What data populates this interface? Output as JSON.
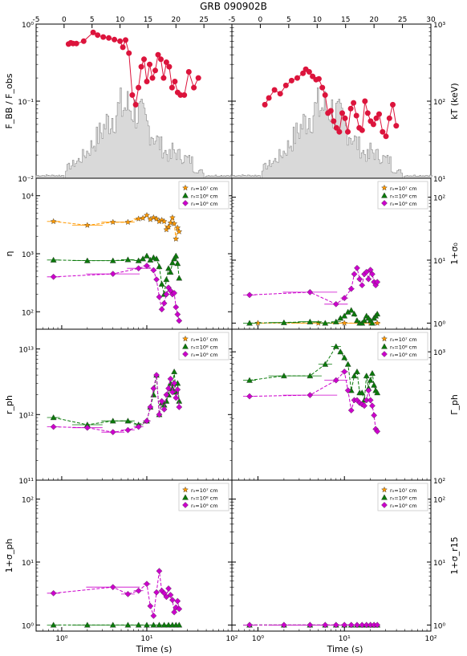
{
  "title": "GRB 090902B",
  "xlabel": "Time (s)",
  "colors": {
    "red": "#dc143c",
    "hist_fill": "#d9d9d9",
    "hist_line": "#8c8c8c",
    "orange": "#ff9900",
    "green": "#0a7a0a",
    "magenta": "#cc00cc"
  },
  "legend": [
    "r₀=10⁷ cm",
    "r₀=10⁸ cm",
    "r₀=10⁹ cm"
  ],
  "top_axis_ticks_left": [
    "-5",
    "0",
    "5",
    "10",
    "15",
    "20",
    "25"
  ],
  "top_axis_ticks_right": [
    "-5",
    "0",
    "5",
    "10",
    "15",
    "20",
    "25",
    "30"
  ],
  "bottom_axis_ticks": [
    "10⁰",
    "10¹",
    "10²"
  ],
  "panels": [
    {
      "id": "fbb",
      "ylabel": "F_BB / F_obs",
      "yticks": [
        "10⁻²",
        "10⁻¹",
        "10⁰"
      ]
    },
    {
      "id": "kt",
      "ylabel": "kT (keV)",
      "yticks": [
        "10¹",
        "10²",
        "10³"
      ]
    },
    {
      "id": "eta",
      "ylabel": "η",
      "yticks": [
        "10²",
        "10³",
        "10⁴"
      ]
    },
    {
      "id": "sigma0",
      "ylabel": "1+σ₀",
      "yticks": [
        "10⁰",
        "10¹",
        "10²"
      ]
    },
    {
      "id": "rph",
      "ylabel": "r_ph",
      "yticks": [
        "10¹¹",
        "10¹²",
        "10¹³"
      ]
    },
    {
      "id": "gph",
      "ylabel": "Γ_ph",
      "yticks": [
        "10²",
        "10³"
      ]
    },
    {
      "id": "sigph",
      "ylabel": "1+σ_ph",
      "yticks": [
        "10⁰",
        "10¹",
        "10²"
      ]
    },
    {
      "id": "sig15",
      "ylabel": "1+σ_r15",
      "yticks": [
        "10⁰",
        "10¹",
        "10²"
      ]
    }
  ],
  "chart_data": {
    "type": "scatter",
    "title": "GRB 090902B",
    "xlabel": "Time (s)",
    "x_scale": "log",
    "xlim": [
      0.5,
      100
    ],
    "top_axis_range": [
      -5,
      30
    ],
    "panels": [
      {
        "ylabel": "F_BB/F_obs",
        "yscale": "log",
        "ylim": [
          0.01,
          1
        ],
        "series": [
          {
            "x": [
              0.8,
              1.2,
              1.6,
              2.2,
              3.5,
              5.2,
              6.0,
              7.0,
              8.0,
              9.0,
              10.0,
              10.5,
              11.0,
              11.6,
              12.2,
              12.8,
              13.3,
              13.8,
              14.3,
              14.8,
              15.3,
              15.8,
              16.3,
              16.8,
              17.3,
              17.8,
              18.3,
              18.8,
              19.3,
              19.8,
              20.3,
              20.8,
              21.5,
              22.3,
              23.2,
              24.0
            ],
            "y": [
              0.55,
              0.57,
              0.56,
              0.56,
              0.6,
              0.78,
              0.72,
              0.68,
              0.66,
              0.63,
              0.6,
              0.5,
              0.62,
              0.42,
              0.12,
              0.09,
              0.15,
              0.28,
              0.35,
              0.18,
              0.3,
              0.2,
              0.25,
              0.4,
              0.35,
              0.2,
              0.32,
              0.28,
              0.15,
              0.18,
              0.13,
              0.12,
              0.12,
              0.24,
              0.15,
              0.2
            ]
          }
        ]
      },
      {
        "ylabel": "kT (keV)",
        "yscale": "log",
        "ylim": [
          10,
          1000
        ],
        "series": [
          {
            "x": [
              0.8,
              1.5,
              2.5,
              3.5,
              4.5,
              5.5,
              6.5,
              7.5,
              8.0,
              8.6,
              9.2,
              9.8,
              10.3,
              10.9,
              11.4,
              11.9,
              12.4,
              12.9,
              13.4,
              13.9,
              14.4,
              14.9,
              15.4,
              15.9,
              16.4,
              16.9,
              17.4,
              17.9,
              18.4,
              18.9,
              19.4,
              19.9,
              20.4,
              20.9,
              21.5,
              22.1,
              22.7,
              23.3,
              23.9
            ],
            "y": [
              90,
              110,
              140,
              125,
              160,
              185,
              200,
              230,
              260,
              240,
              210,
              190,
              195,
              150,
              120,
              70,
              75,
              55,
              45,
              40,
              70,
              60,
              40,
              80,
              95,
              65,
              45,
              42,
              100,
              70,
              55,
              50,
              60,
              68,
              40,
              35,
              60,
              90,
              48
            ]
          }
        ]
      },
      {
        "ylabel": "η",
        "yscale": "log",
        "ylim": [
          50,
          20000
        ],
        "series": [
          {
            "name": "r0=1e7 cm",
            "x": [
              0.8,
              2.0,
              4.0,
              6.0,
              8.0,
              9.0,
              10.0,
              11.0,
              12.0,
              13.0,
              14.0,
              15.0,
              16.0,
              17.0,
              18.0,
              19.0,
              20.0,
              21.0,
              22.0,
              23.0,
              24.0
            ],
            "y": [
              3600,
              3100,
              3500,
              3500,
              4000,
              4100,
              4600,
              3900,
              4200,
              4000,
              3600,
              3800,
              3600,
              2600,
              2900,
              3400,
              4200,
              3300,
              1800,
              2800,
              2400
            ]
          },
          {
            "name": "r0=1e8 cm",
            "x": [
              0.8,
              2.0,
              4.0,
              6.0,
              8.0,
              9.0,
              10.0,
              11.0,
              12.0,
              13.0,
              14.0,
              15.0,
              16.0,
              17.0,
              18.0,
              19.0,
              20.0,
              21.0,
              22.0,
              23.0,
              24.0
            ],
            "y": [
              780,
              760,
              760,
              790,
              760,
              820,
              920,
              780,
              860,
              820,
              600,
              300,
              200,
              360,
              560,
              480,
              700,
              820,
              920,
              680,
              380
            ]
          },
          {
            "name": "r0=1e9 cm",
            "x": [
              0.8,
              4.0,
              8.0,
              10.0,
              12.0,
              13.0,
              14.0,
              15.0,
              16.0,
              17.0,
              18.0,
              19.0,
              20.0,
              21.0,
              22.0,
              23.0,
              24.0
            ],
            "y": [
              400,
              450,
              560,
              620,
              520,
              360,
              180,
              110,
              140,
              200,
              260,
              230,
              200,
              210,
              120,
              90,
              70
            ]
          }
        ]
      },
      {
        "ylabel": "1+σ₀",
        "yscale": "log",
        "ylim": [
          0.8,
          200
        ],
        "series": [
          {
            "name": "r0=1e7 cm",
            "x": [
              1,
              5,
              10,
              15,
              20,
              24
            ],
            "y": [
              1.0,
              1.0,
              1.0,
              1.0,
              1.0,
              1.0
            ]
          },
          {
            "name": "r0=1e8 cm",
            "x": [
              0.8,
              2.0,
              4.0,
              6.0,
              8.0,
              9.0,
              10.0,
              11.0,
              12.0,
              13.0,
              14.0,
              15.0,
              16.0,
              17.0,
              18.0,
              19.0,
              20.0,
              21.0,
              22.0,
              23.0,
              24.0
            ],
            "y": [
              1.0,
              1.02,
              1.05,
              1.0,
              1.05,
              1.2,
              1.3,
              1.5,
              1.6,
              1.4,
              1.1,
              1.0,
              1.0,
              1.1,
              1.3,
              1.2,
              1.1,
              1.0,
              1.2,
              1.3,
              1.4
            ]
          },
          {
            "name": "r0=1e9 cm",
            "x": [
              0.8,
              4.0,
              8.0,
              10.0,
              12.0,
              13.0,
              14.0,
              15.0,
              16.0,
              17.0,
              18.0,
              19.0,
              20.0,
              21.0,
              22.0,
              23.0,
              24.0
            ],
            "y": [
              2.8,
              3.1,
              2.0,
              2.5,
              3.5,
              6.0,
              7.5,
              5.0,
              4.0,
              6.0,
              6.5,
              5.0,
              7.0,
              6.0,
              4.5,
              4.0,
              4.5
            ]
          }
        ]
      },
      {
        "ylabel": "r_ph",
        "yscale": "log",
        "ylim": [
          100000000000.0,
          20000000000000.0
        ],
        "series": [
          {
            "name": "r0=1e8 cm",
            "x": [
              0.8,
              2.0,
              4.0,
              6.0,
              8.0,
              10.0,
              11.0,
              12.0,
              13.0,
              14.0,
              15.0,
              16.0,
              17.0,
              18.0,
              19.0,
              20.0,
              21.0,
              22.0,
              23.0,
              24.0
            ],
            "y": [
              900000000000.0,
              700000000000.0,
              800000000000.0,
              800000000000.0,
              700000000000.0,
              800000000000.0,
              1300000000000.0,
              2000000000000.0,
              4000000000000.0,
              1000000000000.0,
              1500000000000.0,
              1400000000000.0,
              1600000000000.0,
              2000000000000.0,
              3000000000000.0,
              2500000000000.0,
              4500000000000.0,
              2200000000000.0,
              3000000000000.0,
              1600000000000.0
            ]
          },
          {
            "name": "r0=1e9 cm",
            "x": [
              0.8,
              2.0,
              4.0,
              6.0,
              8.0,
              10.0,
              11.0,
              12.0,
              13.0,
              14.0,
              15.0,
              16.0,
              17.0,
              18.0,
              19.0,
              20.0,
              21.0,
              22.0,
              23.0,
              24.0
            ],
            "y": [
              650000000000.0,
              630000000000.0,
              540000000000.0,
              580000000000.0,
              650000000000.0,
              800000000000.0,
              1300000000000.0,
              2500000000000.0,
              4000000000000.0,
              1000000000000.0,
              1600000000000.0,
              1200000000000.0,
              2000000000000.0,
              2500000000000.0,
              3500000000000.0,
              2200000000000.0,
              3000000000000.0,
              1800000000000.0,
              2400000000000.0,
              1300000000000.0
            ]
          }
        ]
      },
      {
        "ylabel": "Γ_ph",
        "yscale": "log",
        "ylim": [
          100,
          1500
        ],
        "series": [
          {
            "name": "r0=1e8 cm",
            "x": [
              0.8,
              2.0,
              4.0,
              6.0,
              8.0,
              9.0,
              10.0,
              11.0,
              12.0,
              13.0,
              14.0,
              15.0,
              16.0,
              17.0,
              18.0,
              19.0,
              20.0,
              21.0,
              22.0,
              23.0,
              24.0
            ],
            "y": [
              600,
              650,
              650,
              800,
              1100,
              1000,
              900,
              800,
              500,
              650,
              700,
              480,
              480,
              420,
              650,
              520,
              600,
              680,
              550,
              500,
              480
            ]
          },
          {
            "name": "r0=1e9 cm",
            "x": [
              0.8,
              4.0,
              8.0,
              10.0,
              11.0,
              12.0,
              13.0,
              14.0,
              15.0,
              16.0,
              17.0,
              18.0,
              19.0,
              20.0,
              21.0,
              22.0,
              23.0,
              24.0
            ],
            "y": [
              450,
              460,
              600,
              700,
              500,
              350,
              420,
              420,
              400,
              390,
              380,
              420,
              500,
              420,
              380,
              320,
              250,
              240
            ]
          }
        ]
      },
      {
        "ylabel": "1+σ_ph",
        "yscale": "log",
        "ylim": [
          0.8,
          200
        ],
        "series": [
          {
            "name": "r0=1e8 cm",
            "x": [
              0.8,
              2,
              4,
              6,
              8,
              10,
              12,
              14,
              16,
              18,
              20,
              22,
              24
            ],
            "y": [
              1,
              1,
              1,
              1,
              1,
              1,
              1,
              1,
              1,
              1,
              1,
              1,
              1
            ]
          },
          {
            "name": "r0=1e9 cm",
            "x": [
              0.8,
              4.0,
              6.0,
              8.0,
              10.0,
              11.0,
              12.0,
              13.0,
              14.0,
              15.0,
              16.0,
              17.0,
              18.0,
              19.0,
              20.0,
              21.0,
              22.0,
              23.0,
              24.0
            ],
            "y": [
              3.2,
              4.0,
              3.1,
              3.5,
              4.5,
              2.0,
              1.4,
              3.3,
              7.2,
              3.5,
              3.2,
              2.8,
              3.8,
              3.0,
              2.5,
              1.6,
              1.9,
              2.4,
              1.8
            ]
          }
        ]
      },
      {
        "ylabel": "1+σ_r15",
        "yscale": "log",
        "ylim": [
          0.8,
          200
        ],
        "series": [
          {
            "name": "r0=1e8 cm",
            "x": [
              0.8,
              2,
              4,
              6,
              8,
              10,
              12,
              14,
              16,
              18,
              20,
              22,
              24
            ],
            "y": [
              1,
              1,
              1,
              1,
              1,
              1,
              1,
              1,
              1,
              1,
              1,
              1,
              1
            ]
          },
          {
            "name": "r0=1e9 cm",
            "x": [
              0.8,
              2,
              4,
              6,
              8,
              10,
              12,
              14,
              16,
              18,
              20,
              22,
              24
            ],
            "y": [
              1,
              1,
              1,
              1,
              1,
              1,
              1,
              1,
              1,
              1,
              1,
              1,
              1
            ]
          }
        ]
      }
    ]
  }
}
